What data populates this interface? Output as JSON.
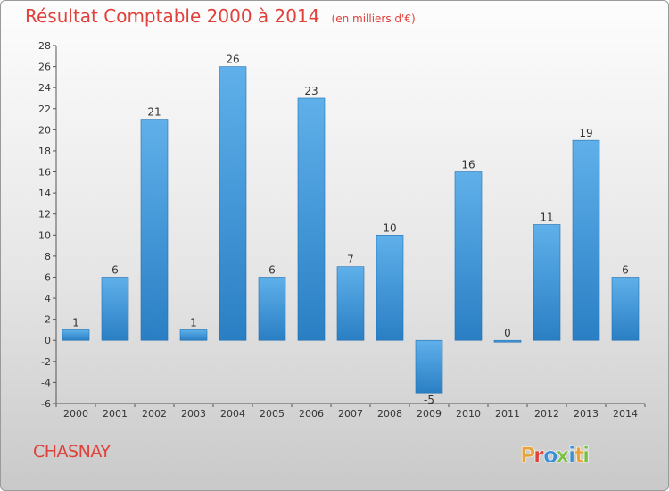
{
  "header": {
    "title": "Résultat Comptable 2000 à 2014",
    "subtitle": "(en milliers d'€)"
  },
  "footer": {
    "commune": "CHASNAY",
    "logo_text": "Proxiti",
    "logo_colors": [
      "#e8a33a",
      "#e0413a",
      "#3a8fd6",
      "#7cc043",
      "#3a8fd6",
      "#e8a33a",
      "#7cc043"
    ]
  },
  "colors": {
    "title": "#e0413a",
    "bar_light": "#5fb0ea",
    "bar_dark": "#2a7fc4"
  },
  "chart_data": {
    "type": "bar",
    "categories": [
      "2000",
      "2001",
      "2002",
      "2003",
      "2004",
      "2005",
      "2006",
      "2007",
      "2008",
      "2009",
      "2010",
      "2011",
      "2012",
      "2013",
      "2014"
    ],
    "values": [
      1,
      6,
      21,
      1,
      26,
      6,
      23,
      7,
      10,
      -5,
      16,
      0,
      11,
      19,
      6
    ],
    "ylim": [
      -6,
      28
    ],
    "yticks": [
      -6,
      -4,
      -2,
      0,
      2,
      4,
      6,
      8,
      10,
      12,
      14,
      16,
      18,
      20,
      22,
      24,
      26,
      28
    ],
    "grid": false
  }
}
